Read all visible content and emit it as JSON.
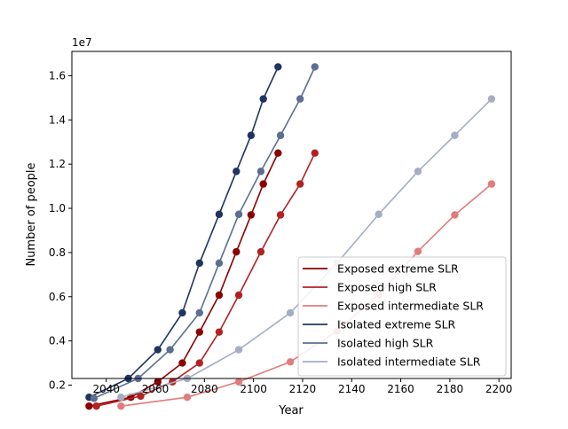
{
  "chart_data": {
    "type": "line",
    "title": "",
    "xlabel": "Year",
    "ylabel": "Number of people",
    "y_offset_label": "1e7",
    "xlim": [
      2026,
      2205
    ],
    "ylim": [
      0.23,
      1.71
    ],
    "x_ticks": [
      2040,
      2060,
      2080,
      2100,
      2120,
      2140,
      2160,
      2180,
      2200
    ],
    "y_ticks": [
      0.2,
      0.4,
      0.6,
      0.8,
      1.0,
      1.2,
      1.4,
      1.6
    ],
    "x_tick_labels": [
      "2040",
      "2060",
      "2080",
      "2100",
      "2120",
      "2140",
      "2160",
      "2180",
      "2200"
    ],
    "y_tick_labels": [
      "0.2",
      "0.4",
      "0.6",
      "0.8",
      "1.0",
      "1.2",
      "1.4",
      "1.6"
    ],
    "grid": false,
    "legend_position": "lower-right",
    "series": [
      {
        "name": "Exposed extreme SLR",
        "color": "#8b0000",
        "x": [
          2033,
          2050,
          2061,
          2071,
          2078,
          2086,
          2093,
          2099,
          2104,
          2110
        ],
        "y": [
          0.105,
          0.145,
          0.215,
          0.3,
          0.44,
          0.607,
          0.803,
          0.97,
          1.11,
          1.25
        ]
      },
      {
        "name": "Exposed high SLR",
        "color": "#b22222",
        "x": [
          2036,
          2054,
          2067,
          2078,
          2086,
          2094,
          2103,
          2111,
          2119,
          2125
        ],
        "y": [
          0.105,
          0.15,
          0.215,
          0.3,
          0.44,
          0.607,
          0.803,
          0.97,
          1.11,
          1.25
        ]
      },
      {
        "name": "Exposed intermediate SLR",
        "color": "#e27b7b",
        "x": [
          2046,
          2073,
          2094,
          2115,
          2134,
          2151,
          2167,
          2182,
          2197
        ],
        "y": [
          0.105,
          0.145,
          0.215,
          0.305,
          0.445,
          0.61,
          0.805,
          0.97,
          1.11
        ]
      },
      {
        "name": "Isolated extreme SLR",
        "color": "#1f3461",
        "x": [
          2033,
          2049,
          2061,
          2071,
          2078,
          2086,
          2093,
          2099,
          2104,
          2110
        ],
        "y": [
          0.145,
          0.23,
          0.36,
          0.527,
          0.752,
          0.973,
          1.167,
          1.33,
          1.495,
          1.64
        ]
      },
      {
        "name": "Isolated high SLR",
        "color": "#5c6e91",
        "x": [
          2035,
          2053,
          2066,
          2078,
          2086,
          2094,
          2103,
          2111,
          2119,
          2125
        ],
        "y": [
          0.14,
          0.23,
          0.36,
          0.527,
          0.752,
          0.973,
          1.167,
          1.33,
          1.495,
          1.64
        ]
      },
      {
        "name": "Isolated intermediate SLR",
        "color": "#a3aec4",
        "x": [
          2046,
          2073,
          2094,
          2115,
          2134,
          2151,
          2167,
          2182,
          2197
        ],
        "y": [
          0.145,
          0.23,
          0.36,
          0.527,
          0.752,
          0.973,
          1.167,
          1.33,
          1.495
        ]
      }
    ]
  }
}
